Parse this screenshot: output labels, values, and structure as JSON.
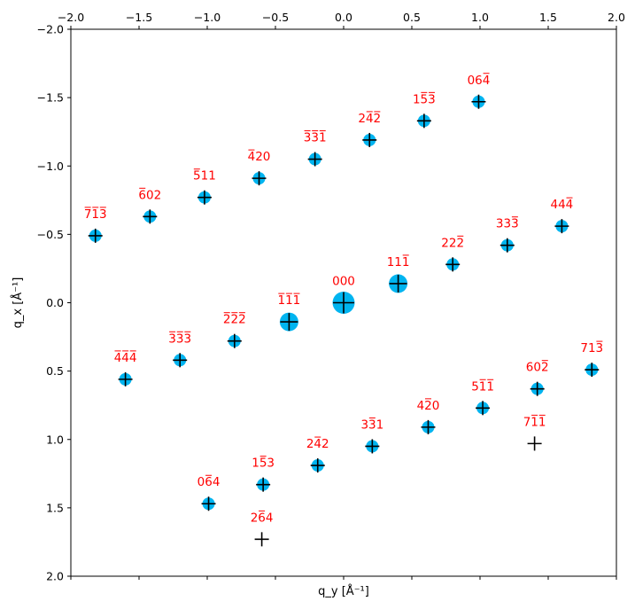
{
  "chart_data": {
    "type": "scatter",
    "xlabel": "q_y [Å⁻¹]",
    "ylabel": "q_x [Å⁻¹]",
    "xlim": [
      -2.0,
      2.0
    ],
    "ylim": [
      2.0,
      -2.0
    ],
    "x_ticks": [
      "−2.0",
      "−1.5",
      "−1.0",
      "−0.5",
      "0.0",
      "0.5",
      "1.0",
      "1.5",
      "2.0"
    ],
    "x_tick_values": [
      -2.0,
      -1.5,
      -1.0,
      -0.5,
      0.0,
      0.5,
      1.0,
      1.5,
      2.0
    ],
    "y_ticks": [
      "−2.0",
      "−1.5",
      "−1.0",
      "−0.5",
      "0.0",
      "0.5",
      "1.0",
      "1.5",
      "2.0"
    ],
    "y_tick_values": [
      -2.0,
      -1.5,
      -1.0,
      -0.5,
      0.0,
      0.5,
      1.0,
      1.5,
      2.0
    ],
    "grid": false,
    "spot_color": "#00b4f0",
    "marker_color": "#000000",
    "label_color": "#ff0000",
    "points": [
      {
        "qy": -1.82,
        "qx": -0.49,
        "label": "713",
        "bars": [
          true,
          true,
          true
        ],
        "spot": true,
        "size": "small"
      },
      {
        "qy": -1.42,
        "qx": -0.63,
        "label": "602",
        "bars": [
          true,
          false,
          false
        ],
        "spot": true,
        "size": "small"
      },
      {
        "qy": -1.02,
        "qx": -0.77,
        "label": "511",
        "bars": [
          true,
          false,
          false
        ],
        "spot": true,
        "size": "small"
      },
      {
        "qy": -0.62,
        "qx": -0.91,
        "label": "420",
        "bars": [
          true,
          false,
          false
        ],
        "spot": true,
        "size": "small"
      },
      {
        "qy": -0.21,
        "qx": -1.05,
        "label": "331",
        "bars": [
          true,
          true,
          true
        ],
        "spot": true,
        "size": "small"
      },
      {
        "qy": 0.19,
        "qx": -1.19,
        "label": "242",
        "bars": [
          false,
          true,
          true
        ],
        "spot": true,
        "size": "small"
      },
      {
        "qy": 0.59,
        "qx": -1.33,
        "label": "153",
        "bars": [
          false,
          true,
          true
        ],
        "spot": true,
        "size": "small"
      },
      {
        "qy": 0.99,
        "qx": -1.47,
        "label": "064",
        "bars": [
          false,
          false,
          true
        ],
        "spot": true,
        "size": "small"
      },
      {
        "qy": 1.6,
        "qx": -0.56,
        "label": "444",
        "bars": [
          false,
          false,
          true
        ],
        "spot": true,
        "size": "small"
      },
      {
        "qy": 1.2,
        "qx": -0.42,
        "label": "333",
        "bars": [
          false,
          false,
          true
        ],
        "spot": true,
        "size": "small"
      },
      {
        "qy": 0.8,
        "qx": -0.28,
        "label": "222",
        "bars": [
          false,
          false,
          true
        ],
        "spot": true,
        "size": "small"
      },
      {
        "qy": 0.4,
        "qx": -0.14,
        "label": "111",
        "bars": [
          false,
          false,
          true
        ],
        "spot": true,
        "size": "medium"
      },
      {
        "qy": 0.0,
        "qx": 0.0,
        "label": "000",
        "bars": [
          false,
          false,
          false
        ],
        "spot": true,
        "size": "large"
      },
      {
        "qy": -0.4,
        "qx": 0.14,
        "label": "111",
        "bars": [
          true,
          true,
          true
        ],
        "spot": true,
        "size": "medium"
      },
      {
        "qy": -0.8,
        "qx": 0.28,
        "label": "222",
        "bars": [
          true,
          true,
          true
        ],
        "spot": true,
        "size": "small"
      },
      {
        "qy": -1.2,
        "qx": 0.42,
        "label": "333",
        "bars": [
          true,
          true,
          true
        ],
        "spot": true,
        "size": "small"
      },
      {
        "qy": -1.6,
        "qx": 0.56,
        "label": "444",
        "bars": [
          true,
          true,
          true
        ],
        "spot": true,
        "size": "small"
      },
      {
        "qy": 1.82,
        "qx": 0.49,
        "label": "713",
        "bars": [
          false,
          false,
          true
        ],
        "spot": true,
        "size": "small"
      },
      {
        "qy": 1.42,
        "qx": 0.63,
        "label": "602",
        "bars": [
          false,
          false,
          true
        ],
        "spot": true,
        "size": "small"
      },
      {
        "qy": 1.02,
        "qx": 0.77,
        "label": "511",
        "bars": [
          false,
          true,
          true
        ],
        "spot": true,
        "size": "small"
      },
      {
        "qy": 0.62,
        "qx": 0.91,
        "label": "420",
        "bars": [
          false,
          true,
          false
        ],
        "spot": true,
        "size": "small"
      },
      {
        "qy": 0.21,
        "qx": 1.05,
        "label": "331",
        "bars": [
          false,
          true,
          false
        ],
        "spot": true,
        "size": "small"
      },
      {
        "qy": -0.19,
        "qx": 1.19,
        "label": "242",
        "bars": [
          false,
          true,
          false
        ],
        "spot": true,
        "size": "small"
      },
      {
        "qy": -0.59,
        "qx": 1.33,
        "label": "153",
        "bars": [
          false,
          true,
          false
        ],
        "spot": true,
        "size": "small"
      },
      {
        "qy": -0.99,
        "qx": 1.47,
        "label": "064",
        "bars": [
          false,
          true,
          false
        ],
        "spot": true,
        "size": "small"
      },
      {
        "qy": 1.4,
        "qx": 1.03,
        "label": "711",
        "bars": [
          false,
          true,
          true
        ],
        "spot": false,
        "size": "small"
      },
      {
        "qy": -0.6,
        "qx": 1.73,
        "label": "264",
        "bars": [
          false,
          true,
          false
        ],
        "spot": false,
        "size": "small"
      }
    ]
  }
}
